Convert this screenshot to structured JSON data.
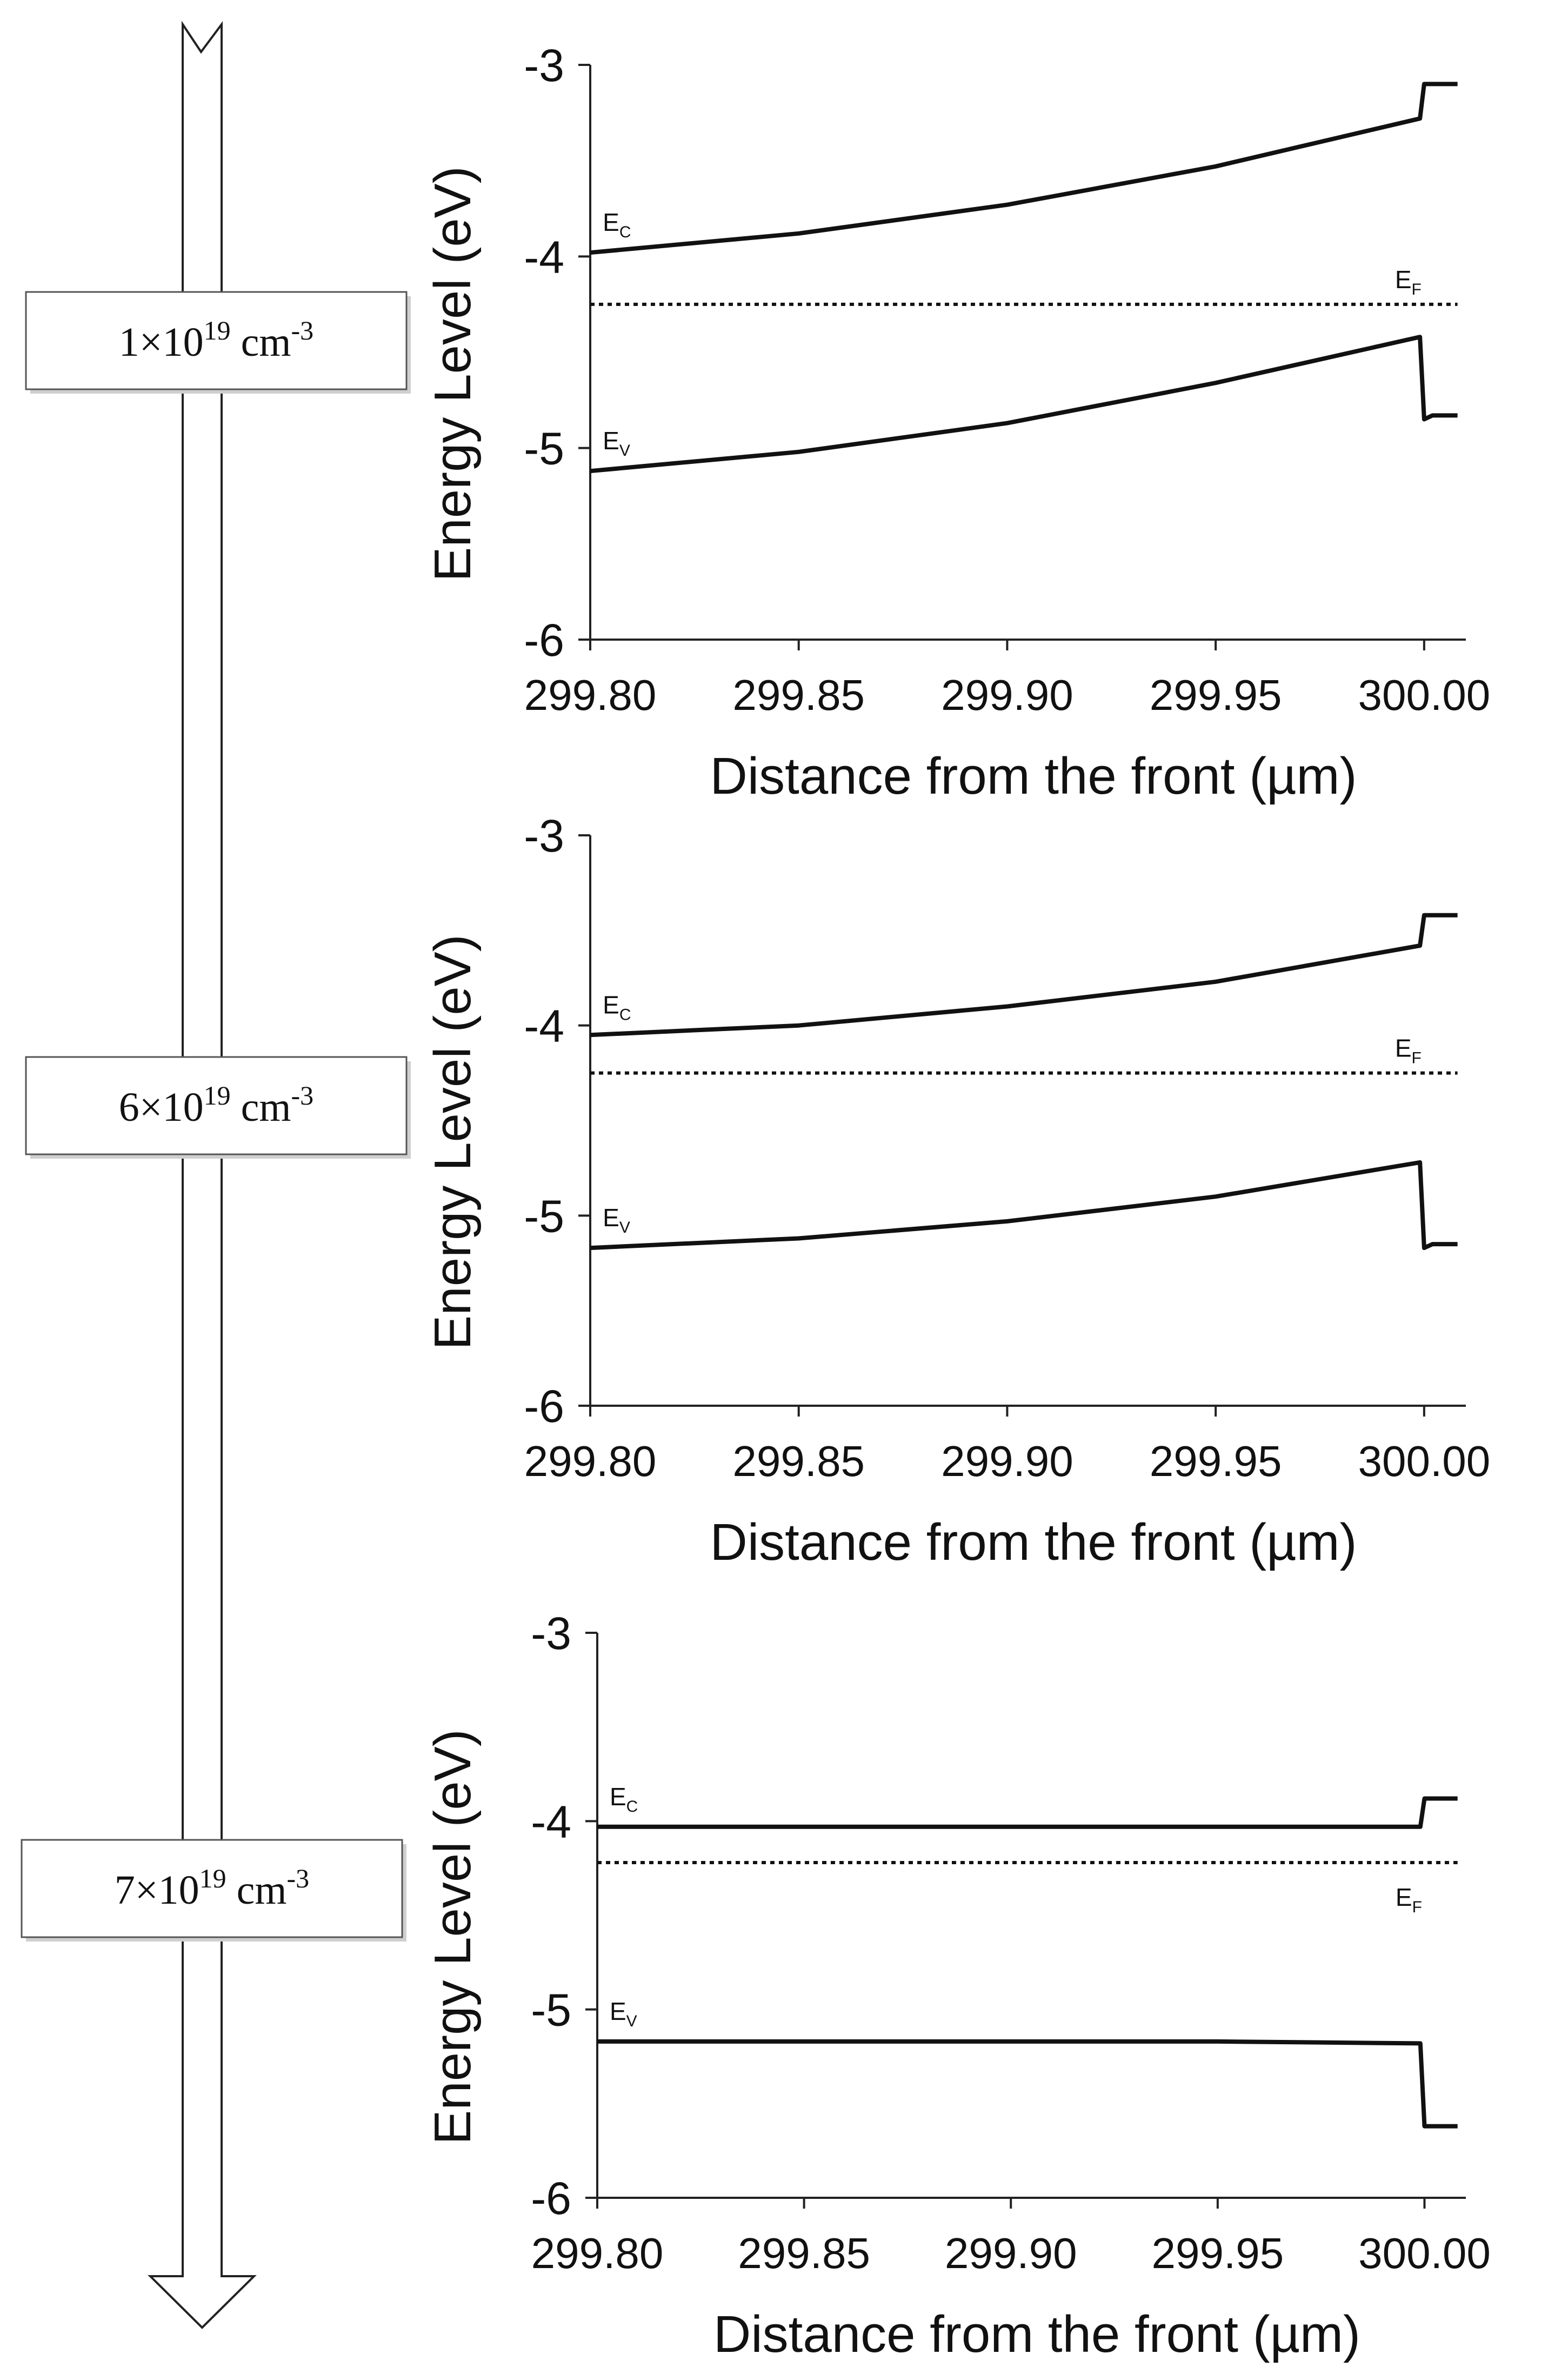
{
  "doping_levels": [
    {
      "coef": "1",
      "times": "×",
      "base": "10",
      "exp": "19",
      "unit": " cm",
      "unit_exp": "-3"
    },
    {
      "coef": "6",
      "times": "×",
      "base": "10",
      "exp": "19",
      "unit": " cm",
      "unit_exp": "-3"
    },
    {
      "coef": "7",
      "times": "×",
      "base": "10",
      "exp": "19",
      "unit": " cm",
      "unit_exp": "-3"
    }
  ],
  "chart_data": [
    {
      "type": "line",
      "xlabel": "Distance from the front (µm)",
      "ylabel": "Energy Level (eV)",
      "xlim": [
        299.8,
        300.01
      ],
      "ylim": [
        -6,
        -3
      ],
      "xticks": [
        "299.80",
        "299.85",
        "299.90",
        "299.95",
        "300.00"
      ],
      "xtick_values": [
        299.8,
        299.85,
        299.9,
        299.95,
        300.0
      ],
      "yticks": [
        "-3",
        "-4",
        "-5",
        "-6"
      ],
      "ytick_values": [
        -3,
        -4,
        -5,
        -6
      ],
      "grid": false,
      "series": [
        {
          "name": "E",
          "sub": "C",
          "style": "solid",
          "x": [
            299.8,
            299.85,
            299.9,
            299.95,
            299.999,
            300.0,
            300.002,
            300.008
          ],
          "y": [
            -3.98,
            -3.88,
            -3.73,
            -3.53,
            -3.28,
            -3.1,
            -3.1,
            -3.1
          ]
        },
        {
          "name": "E",
          "sub": "V",
          "style": "solid",
          "x": [
            299.8,
            299.85,
            299.9,
            299.95,
            299.999,
            300.0,
            300.002,
            300.008
          ],
          "y": [
            -5.12,
            -5.02,
            -4.87,
            -4.66,
            -4.42,
            -4.85,
            -4.83,
            -4.83
          ]
        },
        {
          "name": "E",
          "sub": "F",
          "style": "dotted",
          "x": [
            299.8,
            300.008
          ],
          "y": [
            -4.25,
            -4.25
          ]
        }
      ]
    },
    {
      "type": "line",
      "xlabel": "Distance from the front (µm)",
      "ylabel": "Energy Level (eV)",
      "xlim": [
        299.8,
        300.01
      ],
      "ylim": [
        -6,
        -3
      ],
      "xticks": [
        "299.80",
        "299.85",
        "299.90",
        "299.95",
        "300.00"
      ],
      "xtick_values": [
        299.8,
        299.85,
        299.9,
        299.95,
        300.0
      ],
      "yticks": [
        "-3",
        "-4",
        "-5",
        "-6"
      ],
      "ytick_values": [
        -3,
        -4,
        -5,
        -6
      ],
      "grid": false,
      "series": [
        {
          "name": "E",
          "sub": "C",
          "style": "solid",
          "x": [
            299.8,
            299.85,
            299.9,
            299.95,
            299.999,
            300.0,
            300.002,
            300.008
          ],
          "y": [
            -4.05,
            -4.0,
            -3.9,
            -3.77,
            -3.58,
            -3.42,
            -3.42,
            -3.42
          ]
        },
        {
          "name": "E",
          "sub": "V",
          "style": "solid",
          "x": [
            299.8,
            299.85,
            299.9,
            299.95,
            299.999,
            300.0,
            300.002,
            300.008
          ],
          "y": [
            -5.17,
            -5.12,
            -5.03,
            -4.9,
            -4.72,
            -5.17,
            -5.15,
            -5.15
          ]
        },
        {
          "name": "E",
          "sub": "F",
          "style": "dotted",
          "x": [
            299.8,
            300.008
          ],
          "y": [
            -4.25,
            -4.25
          ]
        }
      ]
    },
    {
      "type": "line",
      "xlabel": "Distance from the front (µm)",
      "ylabel": "Energy Level (eV)",
      "xlim": [
        299.8,
        300.01
      ],
      "ylim": [
        -6,
        -3
      ],
      "xticks": [
        "299.80",
        "299.85",
        "299.90",
        "299.95",
        "300.00"
      ],
      "xtick_values": [
        299.8,
        299.85,
        299.9,
        299.95,
        300.0
      ],
      "yticks": [
        "-3",
        "-4",
        "-5",
        "-6"
      ],
      "ytick_values": [
        -3,
        -4,
        -5,
        -6
      ],
      "grid": false,
      "series": [
        {
          "name": "E",
          "sub": "C",
          "style": "solid",
          "x": [
            299.8,
            299.9,
            299.95,
            299.999,
            300.0,
            300.002,
            300.008
          ],
          "y": [
            -4.03,
            -4.03,
            -4.03,
            -4.03,
            -3.88,
            -3.88,
            -3.88
          ]
        },
        {
          "name": "E",
          "sub": "V",
          "style": "solid",
          "x": [
            299.8,
            299.9,
            299.95,
            299.999,
            300.0,
            300.002,
            300.008
          ],
          "y": [
            -5.17,
            -5.17,
            -5.17,
            -5.18,
            -5.62,
            -5.62,
            -5.62
          ]
        },
        {
          "name": "E",
          "sub": "F",
          "style": "dotted",
          "x": [
            299.8,
            300.008
          ],
          "y": [
            -4.22,
            -4.22
          ]
        }
      ]
    }
  ]
}
